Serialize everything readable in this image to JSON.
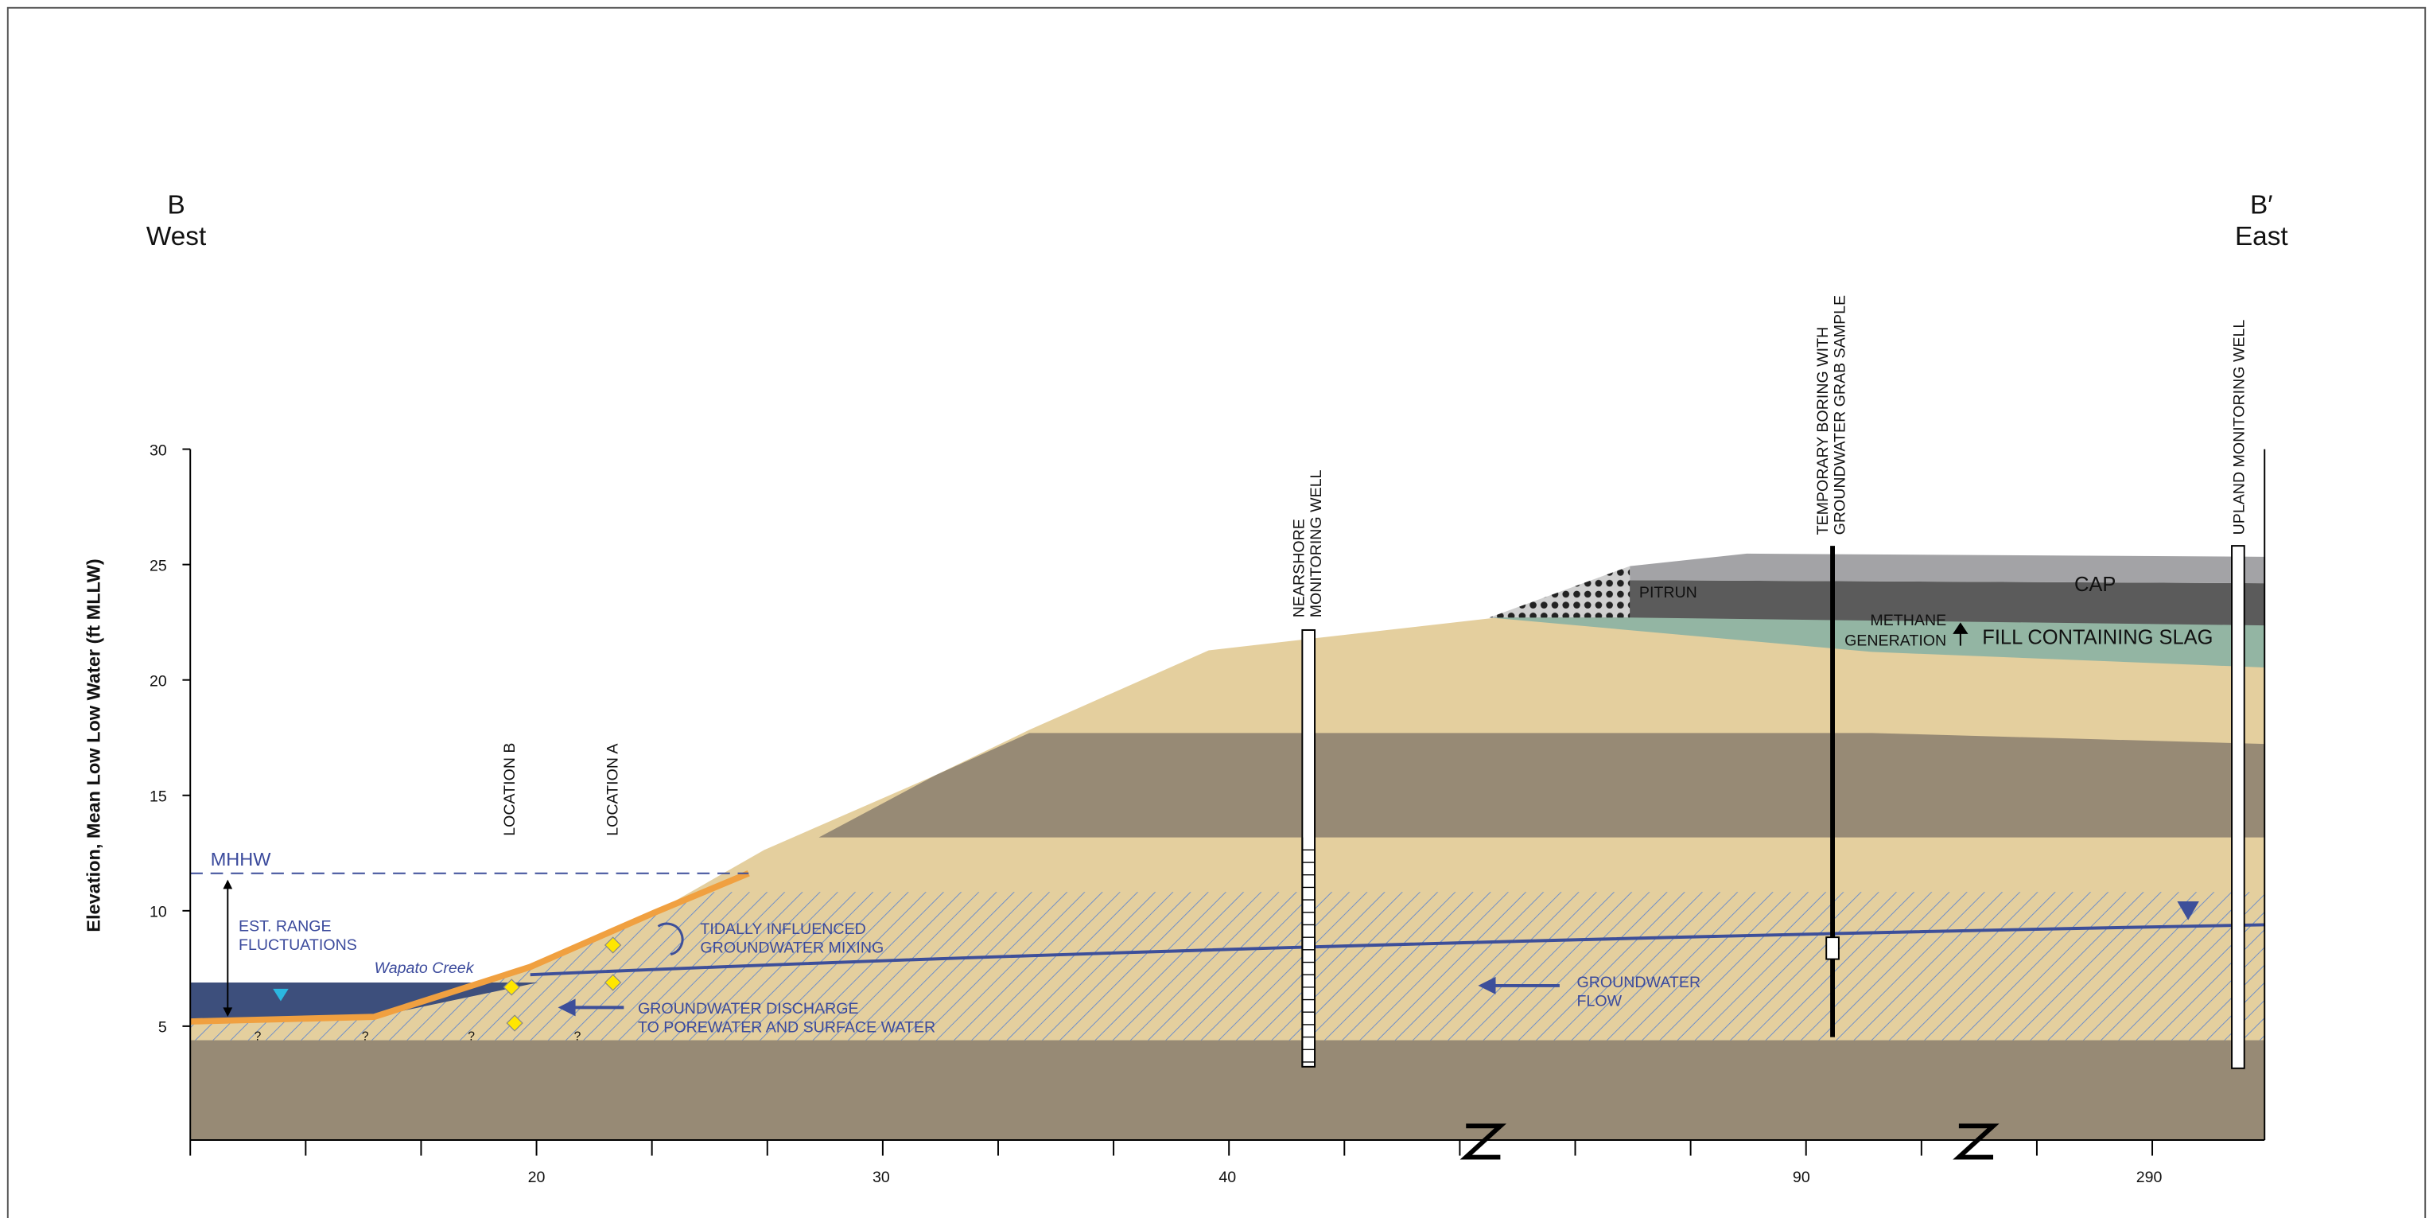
{
  "header": {
    "left_label": "B",
    "left_direction": "West",
    "right_label": "B′",
    "right_direction": "East"
  },
  "axis": {
    "y_label": "Elevation, Mean Low Low Water (ft MLLW)",
    "yticks": [
      30,
      25,
      20,
      15,
      10,
      5
    ],
    "xticks": [
      "20",
      "30",
      "40",
      "90",
      "290"
    ]
  },
  "wells": {
    "nearshore": [
      "NEARSHORE",
      "MONITORING WELL"
    ],
    "temporary": [
      "TEMPORARY BORING WITH",
      "GROUNDWATER GRAB SAMPLE"
    ],
    "upland": "UPLAND MONITORING WELL"
  },
  "locations": {
    "b": "LOCATION B",
    "a": "LOCATION A"
  },
  "layers": {
    "cap": "CAP",
    "pitrun": "PITRUN",
    "fill": "FILL CONTAINING SLAG",
    "methane": [
      "METHANE",
      "GENERATION"
    ]
  },
  "annotations": {
    "mhhw": "MHHW",
    "range": [
      "EST. RANGE",
      "FLUCTUATIONS"
    ],
    "creek": "Wapato Creek",
    "mixing": [
      "TIDALLY INFLUENCED",
      "GROUNDWATER MIXING"
    ],
    "discharge": [
      "GROUNDWATER DISCHARGE",
      "TO POREWATER AND SURFACE WATER"
    ],
    "flow": [
      "GROUNDWATER",
      "FLOW"
    ],
    "unknown": [
      "?",
      "?",
      "?",
      "?"
    ]
  }
}
